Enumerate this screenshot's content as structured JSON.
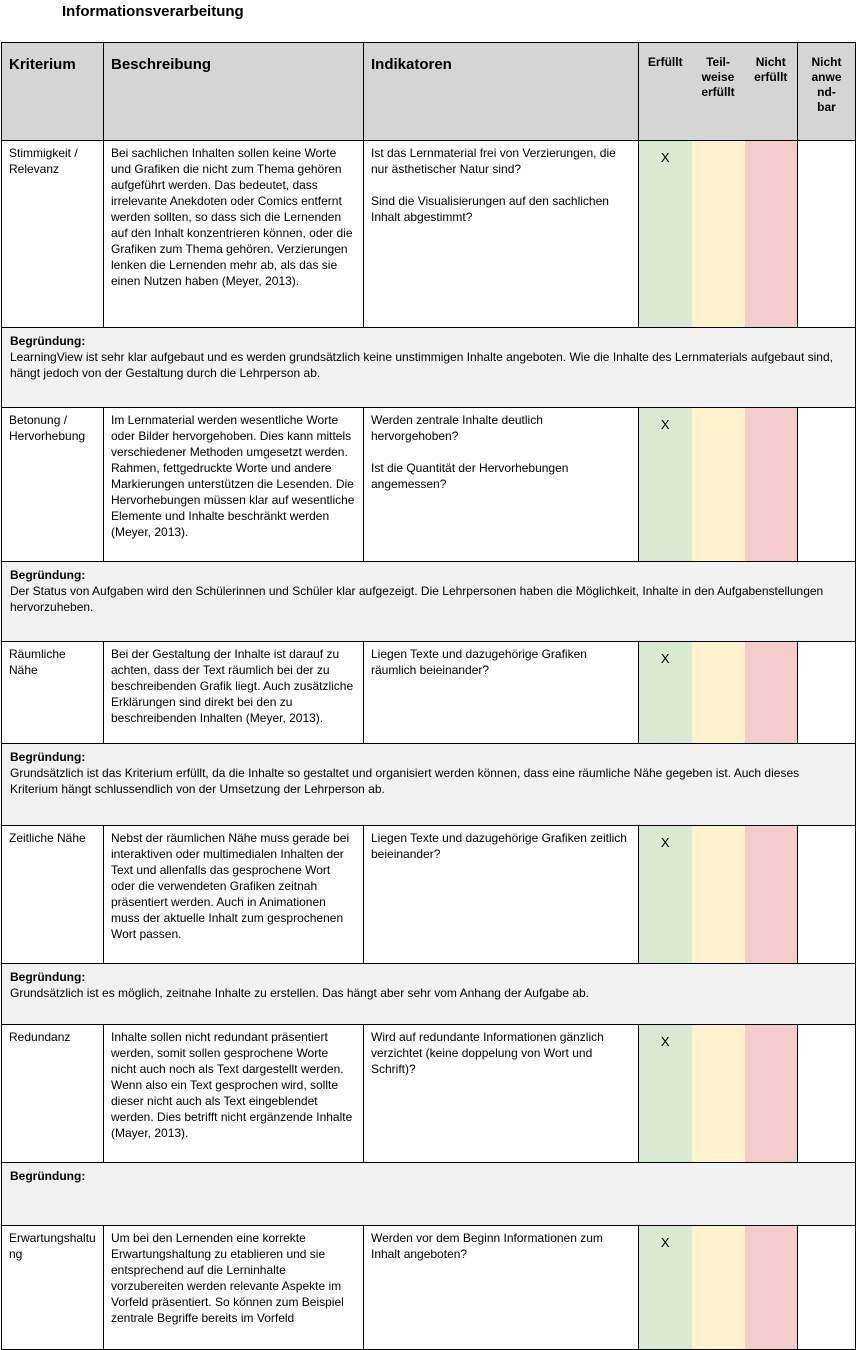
{
  "page": {
    "title": "Informationsverarbeitung"
  },
  "colors": {
    "header_bg": "#d5d5d5",
    "justification_bg": "#f2f2f2",
    "erfuellt_bg": "#d9ead3",
    "teilweise_bg": "#fff2cc",
    "nicht_erfuellt_bg": "#f4cccc",
    "nicht_anwendbar_bg": "#ffffff"
  },
  "table": {
    "headers": {
      "kriterium": "Kriterium",
      "beschreibung": "Beschreibung",
      "indikatoren": "Indikatoren",
      "erfuellt": "Erfüllt",
      "teilweise": "Teil-\nweise\nerfüllt",
      "nicht_erfuellt": "Nicht\nerfüllt",
      "nicht_anwendbar": "Nicht\nanwe\nnd-\nbar"
    },
    "begruendung_label": "Begründung:",
    "rows": [
      {
        "kriterium": "Stimmigkeit / Relevanz",
        "beschreibung": "Bei sachlichen Inhalten sollen keine Worte und Grafiken die nicht zum Thema gehören aufgeführt werden. Das bedeutet, dass irrelevante Anekdoten oder Comics entfernt werden sollten, so dass sich die Lernenden auf den Inhalt konzentrieren können, oder die Grafiken zum Thema gehören. Verzierungen lenken die Lernenden mehr ab, als das sie einen Nutzen haben (Meyer, 2013).",
        "indikatoren": "Ist das Lernmaterial frei von Verzierungen, die nur ästhetischer Natur sind?\n\nSind die Visualisierungen auf den sachlichen Inhalt abgestimmt?",
        "erfuellt": "X",
        "teilweise": "",
        "nicht_erfuellt": "",
        "nicht_anwendbar": "",
        "begruendung": "LearningView ist sehr klar aufgebaut und es werden grundsätzlich keine unstimmigen Inhalte angeboten. Wie die Inhalte des Lernmaterials aufgebaut sind, hängt jedoch von der Gestaltung durch die Lehrperson ab."
      },
      {
        "kriterium": "Betonung / Hervorhebung",
        "beschreibung": "Im Lernmaterial werden wesentliche Worte oder Bilder hervorgehoben. Dies kann mittels verschiedener Methoden umgesetzt werden. Rahmen, fettgedruckte Worte und andere Markierungen unterstützen die Lesenden. Die Hervorhebungen müssen klar auf wesentliche Elemente und Inhalte beschränkt werden (Meyer, 2013).",
        "indikatoren": "Werden zentrale Inhalte deutlich hervorgehoben?\n\nIst die Quantität der Hervorhebungen angemessen?",
        "erfuellt": "X",
        "teilweise": "",
        "nicht_erfuellt": "",
        "nicht_anwendbar": "",
        "begruendung": "Der Status von Aufgaben wird den Schülerinnen und Schüler klar aufgezeigt. Die Lehrpersonen haben die Möglichkeit, Inhalte in den Aufgabenstellungen hervorzuheben."
      },
      {
        "kriterium": "Räumliche Nähe",
        "beschreibung": "Bei der Gestaltung der Inhalte ist darauf zu achten, dass der Text räumlich bei der zu beschreibenden Grafik liegt. Auch zusätzliche Erklärungen sind direkt bei den zu beschreibenden Inhalten (Meyer, 2013).",
        "indikatoren": "Liegen Texte und dazugehörige Grafiken räumlich beieinander?",
        "erfuellt": "X",
        "teilweise": "",
        "nicht_erfuellt": "",
        "nicht_anwendbar": "",
        "begruendung": "Grundsätzlich ist das Kriterium erfüllt, da die Inhalte so gestaltet und organisiert werden können, dass eine räumliche Nähe gegeben ist. Auch dieses Kriterium hängt schlussendlich von der Umsetzung der Lehrperson ab."
      },
      {
        "kriterium": "Zeitliche Nähe",
        "beschreibung": "Nebst der räumlichen Nähe muss gerade bei interaktiven oder multimedialen Inhalten der Text und allenfalls das gesprochene Wort oder die verwendeten Grafiken zeitnah präsentiert werden. Auch in Animationen muss der aktuelle Inhalt zum gesprochenen Wort passen.",
        "indikatoren": "Liegen Texte und dazugehörige Grafiken zeitlich beieinander?",
        "erfuellt": "X",
        "teilweise": "",
        "nicht_erfuellt": "",
        "nicht_anwendbar": "",
        "begruendung": "Grundsätzlich ist es möglich, zeitnahe Inhalte zu erstellen. Das hängt aber sehr vom Anhang der Aufgabe ab."
      },
      {
        "kriterium": "Redundanz",
        "beschreibung": "Inhalte sollen nicht redundant präsentiert werden, somit sollen gesprochene Worte nicht auch noch als Text dargestellt werden. Wenn also ein Text gesprochen wird, sollte dieser nicht auch als Text eingeblendet werden. Dies betrifft nicht ergänzende Inhalte (Mayer, 2013).",
        "indikatoren": "Wird auf redundante Informationen gänzlich verzichtet (keine doppelung von Wort und Schrift)?",
        "erfuellt": "X",
        "teilweise": "",
        "nicht_erfuellt": "",
        "nicht_anwendbar": "",
        "begruendung": ""
      },
      {
        "kriterium": "Erwartungshaltung",
        "beschreibung": "Um bei den Lernenden eine korrekte Erwartungshaltung zu etablieren und sie entsprechend auf die Lerninhalte vorzubereiten werden relevante Aspekte im Vorfeld präsentiert. So können zum Beispiel zentrale Begriffe bereits im Vorfeld",
        "indikatoren": "Werden vor dem Beginn Informationen zum Inhalt angeboten?",
        "erfuellt": "X",
        "teilweise": "",
        "nicht_erfuellt": "",
        "nicht_anwendbar": "",
        "begruendung": ""
      }
    ]
  }
}
